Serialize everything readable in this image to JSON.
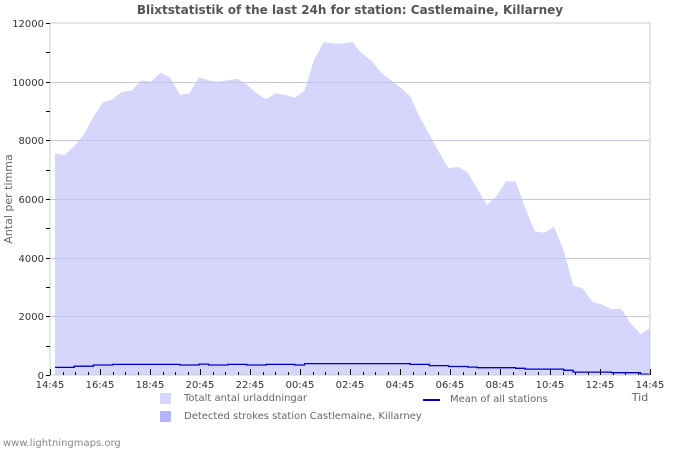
{
  "chart_data": {
    "type": "area",
    "title": "Blixtstatistik of the last 24h for station: Castlemaine, Killarney",
    "xlabel": "Tid",
    "ylabel": "Antal per timma",
    "ylim": [
      0,
      12000
    ],
    "yticks": [
      0,
      2000,
      4000,
      6000,
      8000,
      10000,
      12000
    ],
    "xtick_labels": [
      "14:45",
      "16:45",
      "18:45",
      "20:45",
      "22:45",
      "00:45",
      "02:45",
      "04:45",
      "06:45",
      "08:45",
      "10:45",
      "12:45",
      "14:45"
    ],
    "grid": true,
    "legend_position": "bottom",
    "series": [
      {
        "name": "Totalt antal urladdningar",
        "kind": "area",
        "color": "#d6d6fc",
        "values": [
          7550,
          7500,
          7800,
          8200,
          8800,
          9300,
          9400,
          9650,
          9700,
          10050,
          10000,
          10300,
          10150,
          9550,
          9600,
          10150,
          10050,
          10000,
          10050,
          10100,
          9900,
          9600,
          9400,
          9600,
          9550,
          9450,
          9700,
          10750,
          11350,
          11300,
          11300,
          11350,
          10950,
          10700,
          10300,
          10050,
          9800,
          9500,
          8800,
          8200,
          7600,
          7050,
          7100,
          6900,
          6350,
          5800,
          6100,
          6600,
          6600,
          5700,
          4900,
          4850,
          5050,
          4250,
          3050,
          2950,
          2500,
          2400,
          2250,
          2250,
          1750,
          1400,
          1600
        ]
      },
      {
        "name": "Detected strokes station Castlemaine, Killarney",
        "kind": "area",
        "color": "#b4b4fa",
        "values": []
      },
      {
        "name": "Mean of all stations",
        "kind": "line",
        "color": "#0000cc",
        "values": [
          260,
          260,
          300,
          300,
          340,
          340,
          360,
          360,
          360,
          360,
          360,
          360,
          360,
          340,
          340,
          370,
          340,
          340,
          360,
          360,
          340,
          340,
          360,
          360,
          360,
          340,
          390,
          390,
          390,
          390,
          390,
          390,
          390,
          390,
          390,
          390,
          390,
          360,
          360,
          320,
          320,
          290,
          290,
          270,
          250,
          250,
          250,
          250,
          230,
          200,
          200,
          200,
          200,
          160,
          100,
          100,
          100,
          100,
          80,
          80,
          80,
          30,
          60
        ]
      }
    ]
  },
  "legend": {
    "items": [
      {
        "label": "Totalt antal urladdningar",
        "color": "#d6d6fc"
      },
      {
        "label": "Detected strokes station Castlemaine, Killarney",
        "color": "#b4b4fa"
      },
      {
        "label": "Mean of all stations",
        "color": "#0000cc"
      }
    ]
  },
  "footer": {
    "text": "www.lightningmaps.org"
  }
}
